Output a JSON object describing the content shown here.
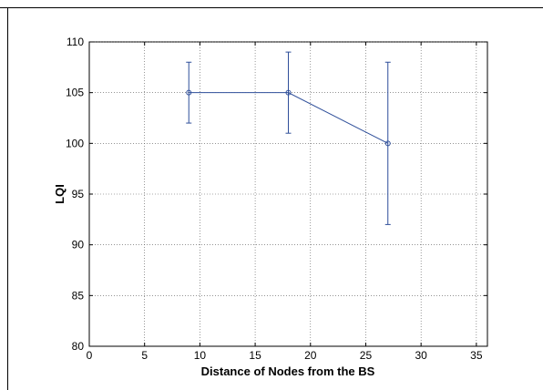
{
  "chart_data": {
    "type": "line",
    "title": "",
    "xlabel": "Distance of Nodes from the BS",
    "ylabel": "LQI",
    "xlim": [
      0,
      36
    ],
    "ylim": [
      80,
      110
    ],
    "xticks": [
      0,
      5,
      10,
      15,
      20,
      25,
      30,
      35
    ],
    "yticks": [
      80,
      85,
      90,
      95,
      100,
      105,
      110
    ],
    "grid": true,
    "grid_style": "dotted",
    "legend": "none",
    "series": [
      {
        "x": [
          9,
          18,
          27
        ],
        "y": [
          105,
          105,
          100
        ],
        "error_low": [
          102,
          101,
          92
        ],
        "error_high": [
          108,
          109,
          108
        ],
        "marker": "circle",
        "color": "#2f4f9a"
      }
    ]
  }
}
